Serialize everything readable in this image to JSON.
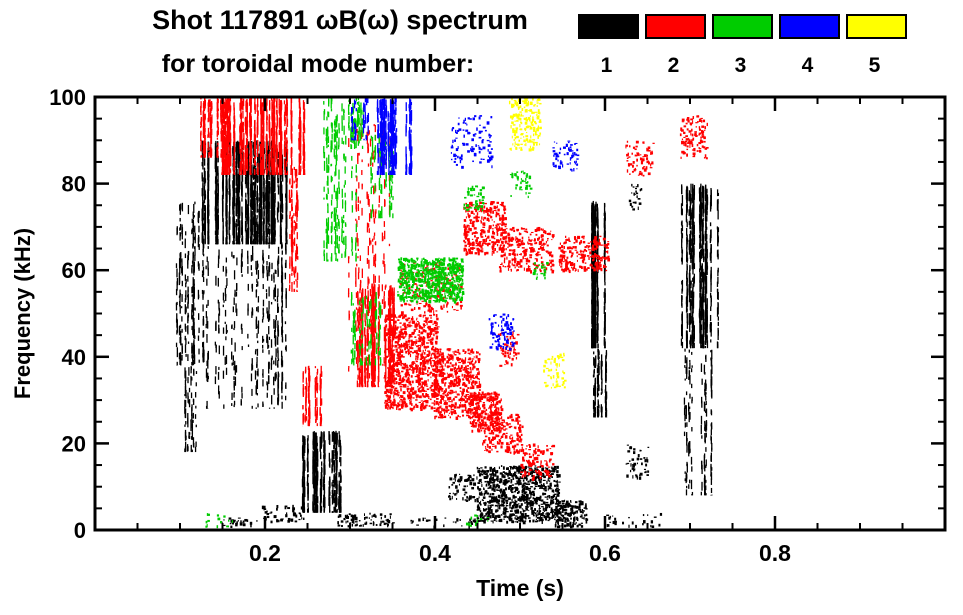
{
  "chart_data": {
    "type": "scatter",
    "title": "Shot 117891 ωB(ω) spectrum",
    "subtitle": "for toroidal mode number:",
    "xlabel": "Time (s)",
    "ylabel": "Frequency (kHz)",
    "xlim": [
      0.0,
      1.0
    ],
    "ylim": [
      0,
      100
    ],
    "xminor": 0.05,
    "yminor": 5,
    "grid": false,
    "legend_position": "top-right",
    "xticks": [
      {
        "v": 0.2,
        "label": "0.2"
      },
      {
        "v": 0.4,
        "label": "0.4"
      },
      {
        "v": 0.6,
        "label": "0.6"
      },
      {
        "v": 0.8,
        "label": "0.8"
      }
    ],
    "yticks": [
      {
        "v": 0,
        "label": "0"
      },
      {
        "v": 20,
        "label": "20"
      },
      {
        "v": 40,
        "label": "40"
      },
      {
        "v": 60,
        "label": "60"
      },
      {
        "v": 80,
        "label": "80"
      },
      {
        "v": 100,
        "label": "100"
      }
    ],
    "legend": [
      {
        "label": "1",
        "color": "#000000"
      },
      {
        "label": "2",
        "color": "#ff0000"
      },
      {
        "label": "3",
        "color": "#00cc00"
      },
      {
        "label": "4",
        "color": "#0000ff"
      },
      {
        "label": "5",
        "color": "#ffff00"
      }
    ],
    "series": [
      {
        "name": "toroidal mode n=1",
        "mode": 1,
        "color": "#000000",
        "clusters": [
          {
            "t": [
              0.095,
              0.128
            ],
            "f": [
              38,
              76
            ],
            "n": 280,
            "shape": "v"
          },
          {
            "t": [
              0.103,
              0.125
            ],
            "f": [
              18,
              38
            ],
            "n": 70,
            "shape": "v"
          },
          {
            "t": [
              0.125,
              0.225
            ],
            "f": [
              66,
              90
            ],
            "n": 1600,
            "shape": "v",
            "seg": [
              3,
              14
            ]
          },
          {
            "t": [
              0.128,
              0.215
            ],
            "f": [
              28,
              66
            ],
            "n": 300,
            "shape": "v"
          },
          {
            "t": [
              0.213,
              0.226
            ],
            "f": [
              28,
              88
            ],
            "n": 160,
            "shape": "v"
          },
          {
            "t": [
              0.24,
              0.295
            ],
            "f": [
              4,
              23
            ],
            "n": 520,
            "shape": "v",
            "seg": [
              3,
              12
            ]
          },
          {
            "t": [
              0.285,
              0.35
            ],
            "f": [
              1,
              4
            ],
            "n": 70,
            "shape": "d"
          },
          {
            "t": [
              0.195,
              0.245
            ],
            "f": [
              2,
              6
            ],
            "n": 45,
            "shape": "d"
          },
          {
            "t": [
              0.415,
              0.447
            ],
            "f": [
              7,
              13
            ],
            "n": 60,
            "shape": "d"
          },
          {
            "t": [
              0.448,
              0.545
            ],
            "f": [
              2,
              15
            ],
            "n": 850,
            "shape": "d"
          },
          {
            "t": [
              0.54,
              0.578
            ],
            "f": [
              1,
              7
            ],
            "n": 160,
            "shape": "d"
          },
          {
            "t": [
              0.583,
              0.603
            ],
            "f": [
              42,
              76
            ],
            "n": 600,
            "shape": "v",
            "seg": [
              3,
              12
            ]
          },
          {
            "t": [
              0.585,
              0.601
            ],
            "f": [
              26,
              42
            ],
            "n": 130,
            "shape": "v"
          },
          {
            "t": [
              0.622,
              0.65
            ],
            "f": [
              12,
              20
            ],
            "n": 45,
            "shape": "d"
          },
          {
            "t": [
              0.628,
              0.642
            ],
            "f": [
              74,
              80
            ],
            "n": 22,
            "shape": "d"
          },
          {
            "t": [
              0.688,
              0.733
            ],
            "f": [
              42,
              80
            ],
            "n": 700,
            "shape": "v",
            "seg": [
              3,
              12
            ]
          },
          {
            "t": [
              0.693,
              0.727
            ],
            "f": [
              8,
              42
            ],
            "n": 170,
            "shape": "v"
          },
          {
            "t": [
              0.145,
              0.19
            ],
            "f": [
              1,
              3
            ],
            "n": 28,
            "shape": "d"
          },
          {
            "t": [
              0.37,
              0.45
            ],
            "f": [
              1,
              3
            ],
            "n": 28,
            "shape": "d"
          },
          {
            "t": [
              0.6,
              0.665
            ],
            "f": [
              1,
              4
            ],
            "n": 28,
            "shape": "d"
          }
        ]
      },
      {
        "name": "toroidal mode n=2",
        "mode": 2,
        "color": "#ff0000",
        "clusters": [
          {
            "t": [
              0.122,
              0.158
            ],
            "f": [
              86,
              100
            ],
            "n": 220,
            "shape": "v"
          },
          {
            "t": [
              0.148,
              0.246
            ],
            "f": [
              82,
              100
            ],
            "n": 1000,
            "shape": "v",
            "seg": [
              3,
              12
            ]
          },
          {
            "t": [
              0.228,
              0.246
            ],
            "f": [
              55,
              84
            ],
            "n": 110,
            "shape": "v"
          },
          {
            "t": [
              0.243,
              0.266
            ],
            "f": [
              24,
              38
            ],
            "n": 140,
            "shape": "v"
          },
          {
            "t": [
              0.298,
              0.35
            ],
            "f": [
              35,
              95
            ],
            "n": 230,
            "shape": "v"
          },
          {
            "t": [
              0.303,
              0.352
            ],
            "f": [
              33,
              57
            ],
            "n": 520,
            "shape": "v",
            "seg": [
              3,
              12
            ]
          },
          {
            "t": [
              0.34,
              0.402
            ],
            "f": [
              28,
              50
            ],
            "n": 800,
            "shape": "d"
          },
          {
            "t": [
              0.398,
              0.452
            ],
            "f": [
              26,
              42
            ],
            "n": 520,
            "shape": "d"
          },
          {
            "t": [
              0.44,
              0.478
            ],
            "f": [
              23,
              32
            ],
            "n": 230,
            "shape": "d"
          },
          {
            "t": [
              0.455,
              0.503
            ],
            "f": [
              18,
              27
            ],
            "n": 150,
            "shape": "d"
          },
          {
            "t": [
              0.5,
              0.538
            ],
            "f": [
              12,
              20
            ],
            "n": 100,
            "shape": "d"
          },
          {
            "t": [
              0.358,
              0.43
            ],
            "f": [
              50,
              62
            ],
            "n": 170,
            "shape": "d"
          },
          {
            "t": [
              0.433,
              0.482
            ],
            "f": [
              64,
              76
            ],
            "n": 300,
            "shape": "d"
          },
          {
            "t": [
              0.475,
              0.538
            ],
            "f": [
              60,
              70
            ],
            "n": 260,
            "shape": "d"
          },
          {
            "t": [
              0.545,
              0.603
            ],
            "f": [
              60,
              68
            ],
            "n": 230,
            "shape": "d"
          },
          {
            "t": [
              0.623,
              0.657
            ],
            "f": [
              82,
              90
            ],
            "n": 70,
            "shape": "d"
          },
          {
            "t": [
              0.688,
              0.72
            ],
            "f": [
              86,
              96
            ],
            "n": 110,
            "shape": "d"
          },
          {
            "t": [
              0.474,
              0.497
            ],
            "f": [
              38,
              46
            ],
            "n": 55,
            "shape": "d"
          }
        ]
      },
      {
        "name": "toroidal mode n=3",
        "mode": 3,
        "color": "#00cc00",
        "clusters": [
          {
            "t": [
              0.267,
              0.307
            ],
            "f": [
              62,
              100
            ],
            "n": 240,
            "shape": "v"
          },
          {
            "t": [
              0.295,
              0.318
            ],
            "f": [
              88,
              100
            ],
            "n": 70,
            "shape": "v"
          },
          {
            "t": [
              0.298,
              0.336
            ],
            "f": [
              38,
              55
            ],
            "n": 100,
            "shape": "v"
          },
          {
            "t": [
              0.324,
              0.352
            ],
            "f": [
              72,
              92
            ],
            "n": 90,
            "shape": "v"
          },
          {
            "t": [
              0.355,
              0.432
            ],
            "f": [
              53,
              63
            ],
            "n": 700,
            "shape": "d"
          },
          {
            "t": [
              0.433,
              0.457
            ],
            "f": [
              74,
              80
            ],
            "n": 45,
            "shape": "d"
          },
          {
            "t": [
              0.488,
              0.512
            ],
            "f": [
              77,
              83
            ],
            "n": 40,
            "shape": "d"
          },
          {
            "t": [
              0.515,
              0.532
            ],
            "f": [
              58,
              62
            ],
            "n": 22,
            "shape": "d"
          },
          {
            "t": [
              0.128,
              0.162
            ],
            "f": [
              1,
              4
            ],
            "n": 14,
            "shape": "d"
          },
          {
            "t": [
              0.428,
              0.462
            ],
            "f": [
              1,
              4
            ],
            "n": 14,
            "shape": "d"
          }
        ]
      },
      {
        "name": "toroidal mode n=4",
        "mode": 4,
        "color": "#0000ff",
        "clusters": [
          {
            "t": [
              0.328,
              0.374
            ],
            "f": [
              82,
              100
            ],
            "n": 380,
            "shape": "v",
            "seg": [
              3,
              12
            ]
          },
          {
            "t": [
              0.3,
              0.322
            ],
            "f": [
              90,
              100
            ],
            "n": 45,
            "shape": "v"
          },
          {
            "t": [
              0.418,
              0.467
            ],
            "f": [
              84,
              96
            ],
            "n": 100,
            "shape": "d"
          },
          {
            "t": [
              0.463,
              0.492
            ],
            "f": [
              42,
              50
            ],
            "n": 80,
            "shape": "d"
          },
          {
            "t": [
              0.538,
              0.567
            ],
            "f": [
              83,
              90
            ],
            "n": 55,
            "shape": "d"
          }
        ]
      },
      {
        "name": "toroidal mode n=5",
        "mode": 5,
        "color": "#ffff00",
        "clusters": [
          {
            "t": [
              0.487,
              0.523
            ],
            "f": [
              88,
              100
            ],
            "n": 180,
            "shape": "d"
          },
          {
            "t": [
              0.527,
              0.552
            ],
            "f": [
              33,
              41
            ],
            "n": 60,
            "shape": "d"
          }
        ]
      }
    ]
  }
}
